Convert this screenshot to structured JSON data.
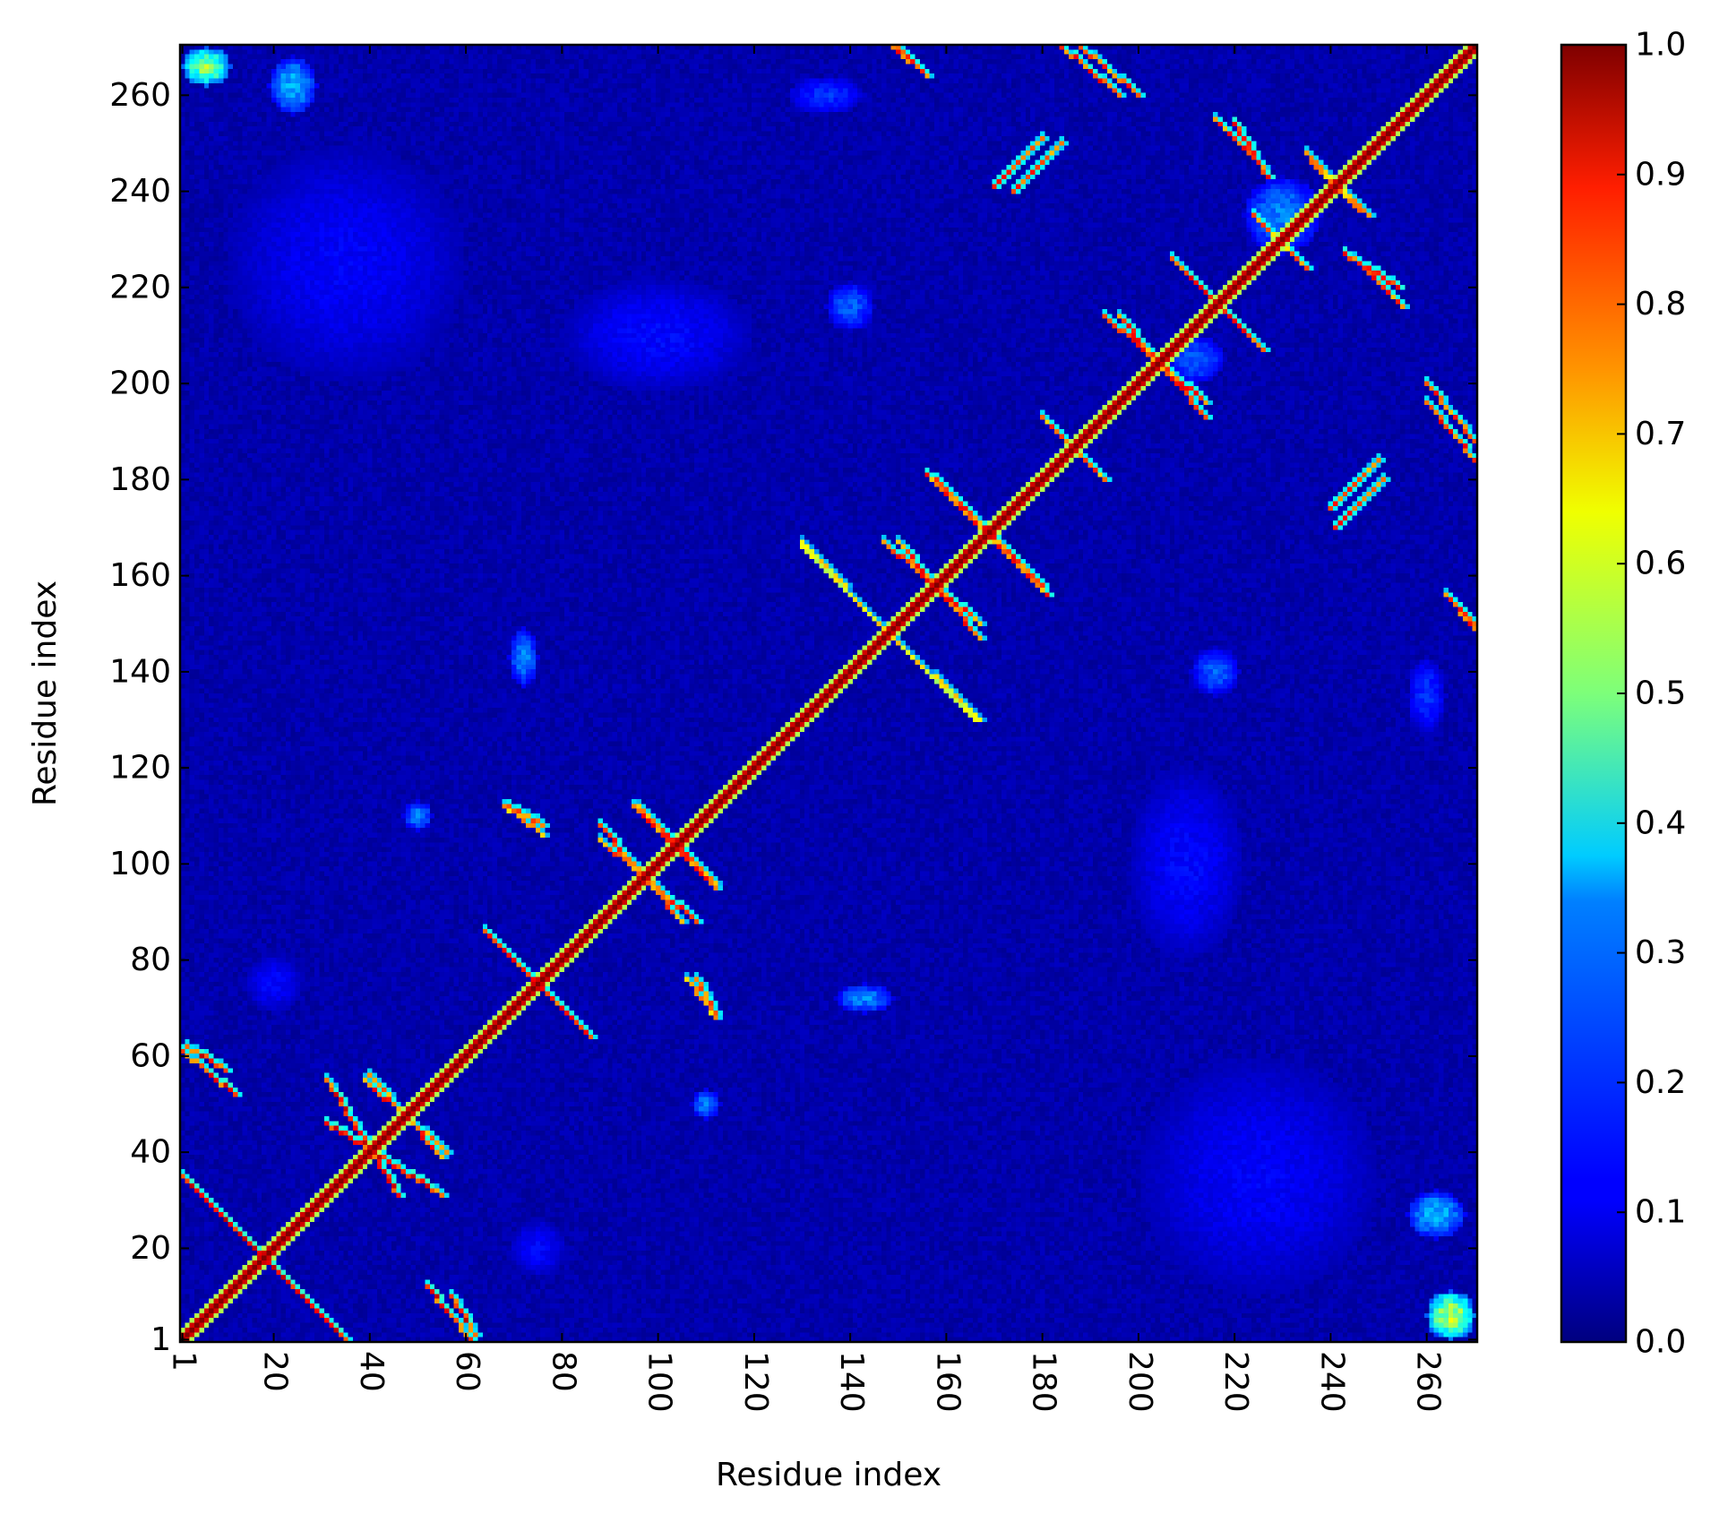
{
  "chart_data": {
    "type": "heatmap",
    "title": "",
    "xlabel": "Residue index",
    "ylabel": "Residue index",
    "x_range": [
      1,
      270
    ],
    "y_range": [
      1,
      270
    ],
    "x_ticks": [
      1,
      20,
      40,
      60,
      80,
      100,
      120,
      140,
      160,
      180,
      200,
      220,
      240,
      260
    ],
    "y_ticks": [
      1,
      20,
      40,
      60,
      80,
      100,
      120,
      140,
      160,
      180,
      200,
      220,
      240,
      260
    ],
    "x_tick_rotation": 90,
    "grid": false,
    "colormap": "jet",
    "colorbar": {
      "range": [
        0.0,
        1.0
      ],
      "ticks": [
        "0.0",
        "0.1",
        "0.2",
        "0.3",
        "0.4",
        "0.5",
        "0.6",
        "0.7",
        "0.8",
        "0.9",
        "1.0"
      ]
    },
    "background_value": 0.05,
    "diagonal_value": 1.0,
    "features": [
      {
        "kind": "anti",
        "x": [
          1,
          35
        ],
        "y": [
          35,
          1
        ],
        "value": 0.95
      },
      {
        "kind": "anti",
        "x": [
          2,
          10
        ],
        "y": [
          62,
          57
        ],
        "value": 0.95
      },
      {
        "kind": "anti",
        "x": [
          31,
          55
        ],
        "y": [
          46,
          31
        ],
        "value": 0.95
      },
      {
        "kind": "anti",
        "x": [
          39,
          56
        ],
        "y": [
          55,
          40
        ],
        "value": 0.9
      },
      {
        "kind": "anti",
        "x": [
          52,
          61
        ],
        "y": [
          12,
          1
        ],
        "value": 0.95
      },
      {
        "kind": "anti",
        "x": [
          64,
          86
        ],
        "y": [
          86,
          64
        ],
        "value": 0.9
      },
      {
        "kind": "anti",
        "x": [
          88,
          108
        ],
        "y": [
          105,
          88
        ],
        "value": 0.9
      },
      {
        "kind": "anti",
        "x": [
          95,
          112
        ],
        "y": [
          112,
          96
        ],
        "value": 0.9
      },
      {
        "kind": "par",
        "x": [
          130,
          148
        ],
        "y": [
          166,
          148
        ],
        "value": 0.65
      },
      {
        "kind": "par",
        "x": [
          148,
          167
        ],
        "y": [
          148,
          130
        ],
        "value": 0.7
      },
      {
        "kind": "anti",
        "x": [
          150,
          167
        ],
        "y": [
          167,
          147
        ],
        "value": 0.9
      },
      {
        "kind": "anti",
        "x": [
          156,
          180
        ],
        "y": [
          181,
          158
        ],
        "value": 0.9
      },
      {
        "kind": "anti",
        "x": [
          180,
          193
        ],
        "y": [
          193,
          180
        ],
        "value": 0.85
      },
      {
        "kind": "anti",
        "x": [
          196,
          214
        ],
        "y": [
          214,
          193
        ],
        "value": 0.9
      },
      {
        "kind": "anti",
        "x": [
          207,
          226
        ],
        "y": [
          226,
          207
        ],
        "value": 0.9
      },
      {
        "kind": "anti",
        "x": [
          224,
          235
        ],
        "y": [
          235,
          224
        ],
        "value": 0.85
      },
      {
        "kind": "anti",
        "x": [
          184,
          196
        ],
        "y": [
          270,
          260
        ],
        "value": 0.9
      },
      {
        "kind": "anti",
        "x": [
          150,
          156
        ],
        "y": [
          270,
          264
        ],
        "value": 0.9
      },
      {
        "kind": "anti",
        "x": [
          260,
          270
        ],
        "y": [
          200,
          188
        ],
        "value": 0.9
      },
      {
        "kind": "anti",
        "x": [
          264,
          270
        ],
        "y": [
          156,
          149
        ],
        "value": 0.9
      },
      {
        "kind": "anti",
        "x": [
          247,
          255
        ],
        "y": [
          224,
          216
        ],
        "value": 0.9
      },
      {
        "kind": "anti",
        "x": [
          220,
          227
        ],
        "y": [
          254,
          243
        ],
        "value": 0.9
      },
      {
        "kind": "anti",
        "x": [
          68,
          76
        ],
        "y": [
          112,
          108
        ],
        "value": 0.85
      },
      {
        "kind": "anti",
        "x": [
          106,
          112
        ],
        "y": [
          76,
          68
        ],
        "value": 0.85
      },
      {
        "kind": "par",
        "x": [
          170,
          180
        ],
        "y": [
          241,
          251
        ],
        "value": 0.9
      },
      {
        "kind": "par",
        "x": [
          240,
          250
        ],
        "y": [
          174,
          184
        ],
        "value": 0.9
      },
      {
        "kind": "anti",
        "x": [
          235,
          246
        ],
        "y": [
          248,
          236
        ],
        "value": 0.8
      },
      {
        "kind": "blob",
        "x": 6,
        "y": 266,
        "rx": 5,
        "ry": 4,
        "value": 0.6
      },
      {
        "kind": "blob",
        "x": 24,
        "y": 262,
        "rx": 5,
        "ry": 6,
        "value": 0.35
      },
      {
        "kind": "blob",
        "x": 265,
        "y": 6,
        "rx": 5,
        "ry": 5,
        "value": 0.65
      },
      {
        "kind": "blob",
        "x": 262,
        "y": 27,
        "rx": 6,
        "ry": 5,
        "value": 0.35
      },
      {
        "kind": "blob",
        "x": 72,
        "y": 143,
        "rx": 3,
        "ry": 6,
        "value": 0.3
      },
      {
        "kind": "blob",
        "x": 143,
        "y": 72,
        "rx": 6,
        "ry": 3,
        "value": 0.3
      },
      {
        "kind": "blob",
        "x": 140,
        "y": 216,
        "rx": 5,
        "ry": 5,
        "value": 0.25
      },
      {
        "kind": "blob",
        "x": 216,
        "y": 140,
        "rx": 5,
        "ry": 5,
        "value": 0.25
      },
      {
        "kind": "blob",
        "x": 230,
        "y": 235,
        "rx": 8,
        "ry": 8,
        "value": 0.3
      },
      {
        "kind": "blob",
        "x": 212,
        "y": 205,
        "rx": 6,
        "ry": 5,
        "value": 0.25
      },
      {
        "kind": "blob",
        "x": 135,
        "y": 260,
        "rx": 8,
        "ry": 4,
        "value": 0.2
      },
      {
        "kind": "blob",
        "x": 260,
        "y": 135,
        "rx": 4,
        "ry": 8,
        "value": 0.2
      },
      {
        "kind": "blob",
        "x": 50,
        "y": 110,
        "rx": 3,
        "ry": 3,
        "value": 0.3
      },
      {
        "kind": "blob",
        "x": 110,
        "y": 50,
        "rx": 3,
        "ry": 3,
        "value": 0.3
      },
      {
        "kind": "blob",
        "x": 20,
        "y": 75,
        "rx": 6,
        "ry": 6,
        "value": 0.15
      },
      {
        "kind": "blob",
        "x": 75,
        "y": 20,
        "rx": 6,
        "ry": 6,
        "value": 0.15
      },
      {
        "kind": "blob",
        "x": 100,
        "y": 210,
        "rx": 20,
        "ry": 12,
        "value": 0.15
      },
      {
        "kind": "blob",
        "x": 210,
        "y": 100,
        "rx": 12,
        "ry": 20,
        "value": 0.15
      },
      {
        "kind": "blob",
        "x": 225,
        "y": 35,
        "rx": 25,
        "ry": 25,
        "value": 0.14
      },
      {
        "kind": "blob",
        "x": 35,
        "y": 225,
        "rx": 25,
        "ry": 25,
        "value": 0.14
      }
    ]
  }
}
